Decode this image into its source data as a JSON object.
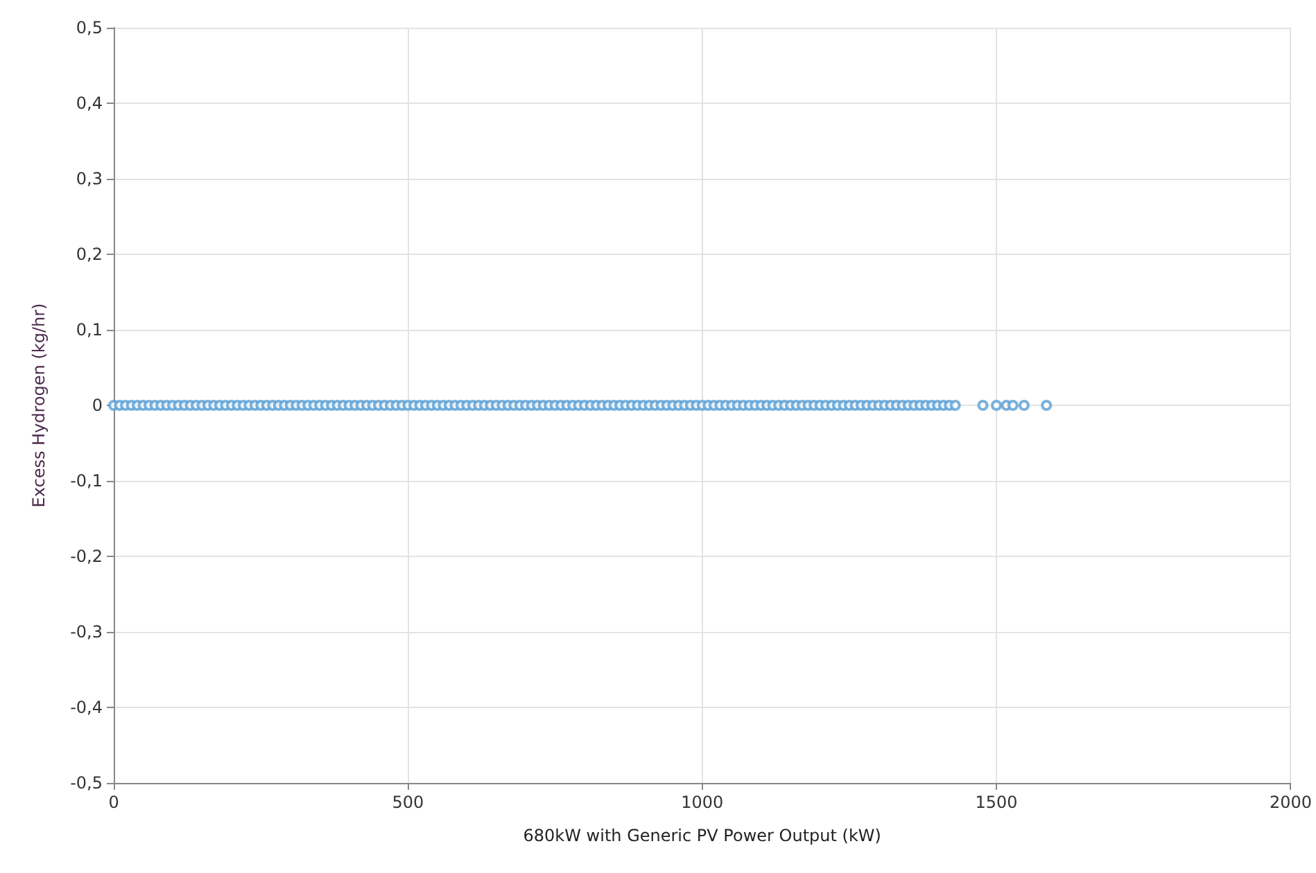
{
  "chart_data": {
    "type": "scatter",
    "xlabel": "680kW with Generic PV Power Output (kW)",
    "ylabel": "Excess Hydrogen (kg/hr)",
    "x": [
      0,
      10,
      20,
      30,
      40,
      50,
      60,
      70,
      80,
      90,
      100,
      110,
      120,
      130,
      140,
      150,
      160,
      170,
      180,
      190,
      200,
      210,
      220,
      230,
      240,
      250,
      260,
      270,
      280,
      290,
      300,
      310,
      320,
      330,
      340,
      350,
      360,
      370,
      380,
      390,
      400,
      410,
      420,
      430,
      440,
      450,
      460,
      470,
      480,
      490,
      500,
      510,
      520,
      530,
      540,
      550,
      560,
      570,
      580,
      590,
      600,
      610,
      620,
      630,
      640,
      650,
      660,
      670,
      680,
      690,
      700,
      710,
      720,
      730,
      740,
      750,
      760,
      770,
      780,
      790,
      800,
      810,
      820,
      830,
      840,
      850,
      860,
      870,
      880,
      890,
      900,
      910,
      920,
      930,
      940,
      950,
      960,
      970,
      980,
      990,
      1000,
      1010,
      1020,
      1030,
      1040,
      1050,
      1060,
      1070,
      1080,
      1090,
      1100,
      1110,
      1120,
      1130,
      1140,
      1150,
      1160,
      1170,
      1180,
      1190,
      1200,
      1210,
      1220,
      1230,
      1240,
      1250,
      1260,
      1270,
      1280,
      1290,
      1300,
      1310,
      1320,
      1330,
      1340,
      1350,
      1360,
      1370,
      1380,
      1390,
      1400,
      1410,
      1420,
      1430,
      1477,
      1500,
      1517,
      1528,
      1547,
      1585
    ],
    "values": [
      0,
      0,
      0,
      0,
      0,
      0,
      0,
      0,
      0,
      0,
      0,
      0,
      0,
      0,
      0,
      0,
      0,
      0,
      0,
      0,
      0,
      0,
      0,
      0,
      0,
      0,
      0,
      0,
      0,
      0,
      0,
      0,
      0,
      0,
      0,
      0,
      0,
      0,
      0,
      0,
      0,
      0,
      0,
      0,
      0,
      0,
      0,
      0,
      0,
      0,
      0,
      0,
      0,
      0,
      0,
      0,
      0,
      0,
      0,
      0,
      0,
      0,
      0,
      0,
      0,
      0,
      0,
      0,
      0,
      0,
      0,
      0,
      0,
      0,
      0,
      0,
      0,
      0,
      0,
      0,
      0,
      0,
      0,
      0,
      0,
      0,
      0,
      0,
      0,
      0,
      0,
      0,
      0,
      0,
      0,
      0,
      0,
      0,
      0,
      0,
      0,
      0,
      0,
      0,
      0,
      0,
      0,
      0,
      0,
      0,
      0,
      0,
      0,
      0,
      0,
      0,
      0,
      0,
      0,
      0,
      0,
      0,
      0,
      0,
      0,
      0,
      0,
      0,
      0,
      0,
      0,
      0,
      0,
      0,
      0,
      0,
      0,
      0,
      0,
      0,
      0,
      0,
      0,
      0,
      0,
      0,
      0,
      0,
      0,
      0
    ],
    "color": "#5a9fd4",
    "marker": "circle",
    "grid": true,
    "xlim": [
      0,
      2000
    ],
    "xticks": [
      0,
      500,
      1000,
      1500,
      2000
    ],
    "ylim": [
      -0.5,
      0.5
    ],
    "yticks": [
      {
        "value": -0.5,
        "label": "-0,5"
      },
      {
        "value": -0.4,
        "label": "-0,4"
      },
      {
        "value": -0.3,
        "label": "-0,3"
      },
      {
        "value": -0.2,
        "label": "-0,2"
      },
      {
        "value": -0.1,
        "label": "-0,1"
      },
      0,
      {
        "value": 0.1,
        "label": "0,1"
      },
      {
        "value": 0.2,
        "label": "0,2"
      },
      {
        "value": 0.3,
        "label": "0,3"
      },
      {
        "value": 0.4,
        "label": "0,4"
      },
      {
        "value": 0.5,
        "label": "0,5"
      }
    ]
  }
}
